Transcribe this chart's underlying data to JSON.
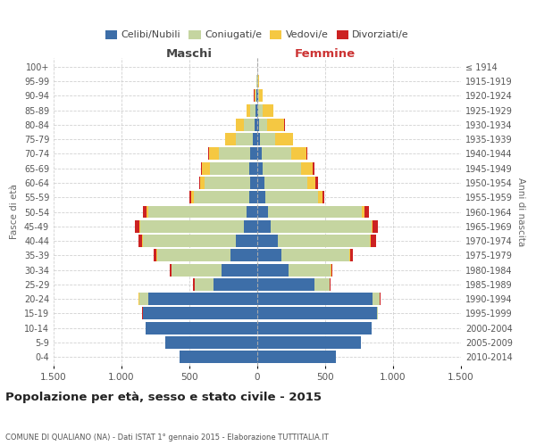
{
  "age_groups": [
    "0-4",
    "5-9",
    "10-14",
    "15-19",
    "20-24",
    "25-29",
    "30-34",
    "35-39",
    "40-44",
    "45-49",
    "50-54",
    "55-59",
    "60-64",
    "65-69",
    "70-74",
    "75-79",
    "80-84",
    "85-89",
    "90-94",
    "95-99",
    "100+"
  ],
  "birth_years": [
    "2010-2014",
    "2005-2009",
    "2000-2004",
    "1995-1999",
    "1990-1994",
    "1985-1989",
    "1980-1984",
    "1975-1979",
    "1970-1974",
    "1965-1969",
    "1960-1964",
    "1955-1959",
    "1950-1954",
    "1945-1949",
    "1940-1944",
    "1935-1939",
    "1930-1934",
    "1925-1929",
    "1920-1924",
    "1915-1919",
    "≤ 1914"
  ],
  "maschi": {
    "celibi": [
      570,
      680,
      820,
      840,
      800,
      320,
      260,
      200,
      160,
      100,
      80,
      60,
      55,
      60,
      55,
      30,
      20,
      10,
      5,
      2,
      0
    ],
    "coniugati": [
      0,
      0,
      0,
      5,
      70,
      140,
      370,
      540,
      680,
      760,
      720,
      410,
      330,
      290,
      230,
      130,
      80,
      40,
      10,
      3,
      0
    ],
    "vedovi": [
      0,
      0,
      0,
      0,
      2,
      2,
      3,
      5,
      8,
      10,
      15,
      20,
      35,
      55,
      70,
      75,
      55,
      30,
      8,
      2,
      0
    ],
    "divorziati": [
      0,
      0,
      0,
      2,
      5,
      10,
      15,
      20,
      30,
      30,
      30,
      12,
      10,
      8,
      8,
      5,
      5,
      2,
      1,
      0,
      0
    ]
  },
  "femmine": {
    "nubili": [
      580,
      760,
      840,
      880,
      850,
      420,
      230,
      180,
      150,
      100,
      80,
      60,
      50,
      40,
      30,
      20,
      10,
      8,
      5,
      2,
      0
    ],
    "coniugate": [
      0,
      0,
      0,
      5,
      50,
      110,
      310,
      500,
      680,
      740,
      690,
      390,
      320,
      280,
      220,
      110,
      60,
      30,
      10,
      3,
      0
    ],
    "vedove": [
      0,
      0,
      0,
      0,
      2,
      2,
      3,
      5,
      8,
      10,
      20,
      30,
      60,
      90,
      110,
      130,
      130,
      80,
      25,
      5,
      0
    ],
    "divorziate": [
      0,
      0,
      0,
      2,
      5,
      8,
      12,
      20,
      35,
      40,
      30,
      15,
      15,
      10,
      10,
      5,
      5,
      2,
      1,
      0,
      0
    ]
  },
  "color_celibi": "#3d6ea8",
  "color_coniugati": "#c5d5a0",
  "color_vedovi": "#f5c842",
  "color_divorziati": "#cc2222",
  "bg_color": "#ffffff",
  "grid_color": "#cccccc",
  "title": "Popolazione per età, sesso e stato civile - 2015",
  "subtitle": "COMUNE DI QUALIANO (NA) - Dati ISTAT 1° gennaio 2015 - Elaborazione TUTTITALIA.IT",
  "maschi_label": "Maschi",
  "femmine_label": "Femmine",
  "fasce_label": "Fasce di età",
  "anni_label": "Anni di nascita",
  "xlim": 1500,
  "xlabel_ticks": [
    -1500,
    -1000,
    -500,
    0,
    500,
    1000,
    1500
  ],
  "legend_labels": [
    "Celibi/Nubili",
    "Coniugati/e",
    "Vedovi/e",
    "Divorziati/e"
  ]
}
